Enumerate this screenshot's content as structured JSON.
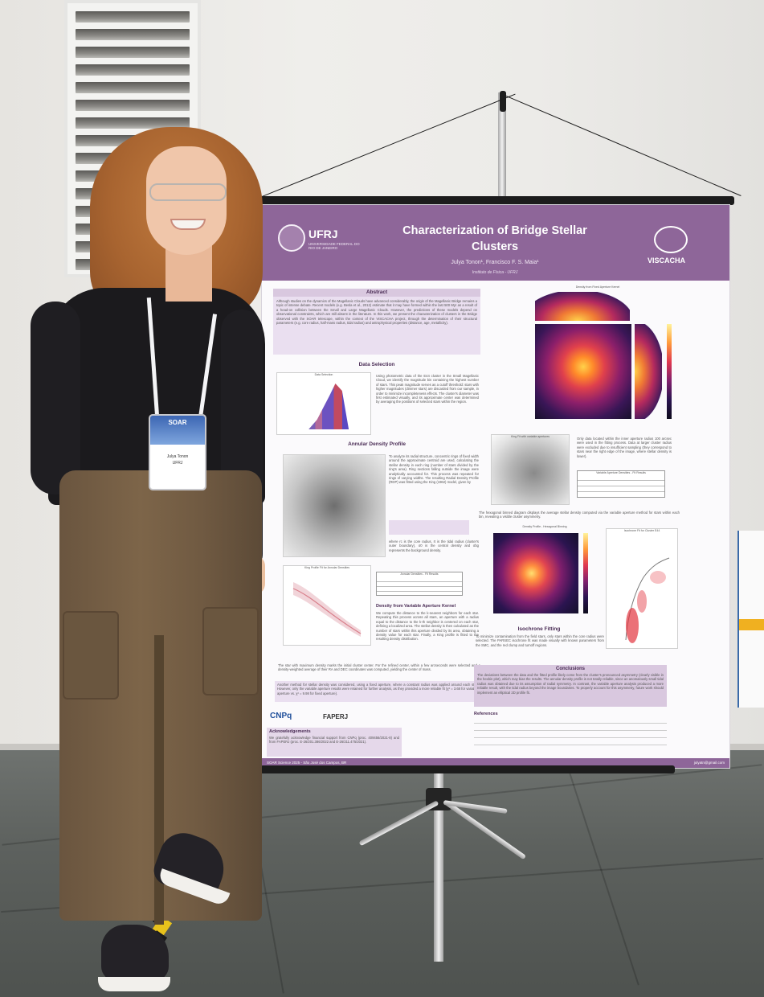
{
  "poster": {
    "title_line1": "Characterization of Bridge Stellar",
    "title_line2": "Clusters",
    "authors": "Julya Tonon¹, Francisco F. S. Maia¹",
    "institution": "Instituto de Física - UFRJ",
    "ufrj_logo": "UFRJ",
    "ufrj_subtitle": "UNIVERSIDADE FEDERAL DO RIO DE JANEIRO",
    "viscacha_logo": "VISCACHA",
    "sections": {
      "abstract": "Abstract",
      "data_selection": "Data Selection",
      "annular_density": "Annular Density Profile",
      "variable_kernel": "Density from Variable Aperture Kernel",
      "isochrone": "Isochrone Fitting",
      "conclusions": "Conclusions",
      "references": "References",
      "acknowledgements": "Acknowledgements"
    },
    "abstract_text": "Although studies on the dynamics of the Magellanic Clouds have advanced considerably, the origin of the Magellanic Bridge remains a topic of intense debate. Recent models (e.g. Besla et al., 2012) estimate that it may have formed within the last 500 Myr as a result of a head-on collision between the Small and Large Magellanic Clouds. However, the predictions of these models depend on observational constraints, which are still absent in the literature. In this work, we present the characterization of clusters in the Bridge observed with the SOAR telescope, within the context of the VISCACHA project, through the determination of their structural parameters (e.g. core radius, half-mass radius, tidal radius) and astrophysical properties (distance, age, metallicity).",
    "data_selection_text": "Using photometric data of the E44 cluster in the Small Magellanic Cloud, we identify the magnitude bin containing the highest number of stars. This peak magnitude serves as a cutoff threshold: stars with higher magnitudes (dimmer stars) are discarded from our sample, in order to minimize incompleteness effects. The cluster's diameter was first estimated visually, and its approximate center was determined by averaging the positions of selected stars within the region.",
    "annular_text": "To analyze its radial structure, concentric rings of fixed width around the approximate centroid are used, calculating the stellar density in each ring (number of stars divided by the ring's area). Ring sections falling outside the image were analytically accounted for. This process was repeated for rings of varying widths. The resulting Radial Density Profile (RDP) was fitted using the King (1962) model, given by",
    "king_note": "where rc is the core radius, rt is the tidal radius (cluster's outer boundary), σ0 is the central density and σbg represents the background density.",
    "kernel_text": "We compute the distance to the k-nearest neighbors for each star. Repeating this process across all stars, an aperture with a radius equal to the distance to the k-th neighbor is centered on each star, defining a localized area. The stellar density is then calculated as the number of stars within this aperture divided by its area, obtaining a density value for each star. Finally, a King profile is fitted to the resulting density distribution.",
    "bullet_text": "The star with maximum density marks the initial cluster center. For the refined center, within a few arcseconds were selected and a density-weighted average of their RA and DEC coordinates was computed, yielding the center of mass.",
    "fixed_aperture_text": "Another method for stellar density was considered, using a fixed aperture, where a constant radius was applied around each star. However, only the variable aperture results were retained for further analysis, as they provided a more reliable fit (χ² = 3.68 for variable aperture vs. χ² = 9.98 for fixed aperture).",
    "hexbin_text": "The hexagonal binned diagram displays the average stellar density computed via the variable aperture method for stars within each bin, revealing a visible cluster asymmetry.",
    "inner_aperture_text": "Only data located within the inner aperture radius 100 arcsec were used in the fitting process. Data at larger cluster radius were excluded due to insufficient sampling (they correspond to stars near the right edge of the image, where stellar density is lower).",
    "isochrone_text": "To minimize contamination from the field stars, only stars within the core radius were selected. The PARSEC isochrone fit was made visually with known parameters from the SMC, and the red clump and turnoff regions.",
    "conclusions_text": "The deviations between the data and the fitted profile likely come from the cluster's pronounced asymmetry (clearly visible in the hexbin plot), which may bias the results. The annular density profile is not totally reliable, since an anomalously small tidal radius was obtained due to its assumption of radial symmetry. In contrast, the variable aperture analysis produced a more reliable result, with the tidal radius beyond the image boundaries. To properly account for this asymmetry, future work should implement an elliptical 2D profile fit.",
    "acknowledgements_text": "We gratefully acknowledge financial support from CNPq (proc. 409456/2021-8) and from FAPERJ (proc. E-26/201.386/2022 and E-26/211.475/2021).",
    "footer_left": "SOAR Science 2025 - São José dos Campos, BR",
    "footer_right": "julyatn@gmail.com",
    "plot_titles": {
      "data_hist": "Data Selection",
      "rings": "Annular Density Ring (r= 0.55')",
      "king_fit": "King Profile Fit for Annular Densities",
      "density_kernel": "Density from Fixed Aperture Kernel",
      "king_var": "King Fit with variable apertures",
      "hexbin": "Density Profile - Hexagonal Binning",
      "isochrone": "Isochrone Fit for Cluster E44"
    },
    "table_annular_title": "Annular Densities - Fit Results",
    "table_variable_title": "Variable Aperture Densities - Fit Results",
    "table_headers": [
      "Parameter",
      "Value",
      "Std. Error",
      "Relative Error"
    ],
    "logos": {
      "cnpq": "CNPq",
      "faperj": "FAPERJ"
    }
  },
  "badge": {
    "event": "SOAR",
    "name": "Julya Tonon",
    "affil": "UFRJ"
  }
}
